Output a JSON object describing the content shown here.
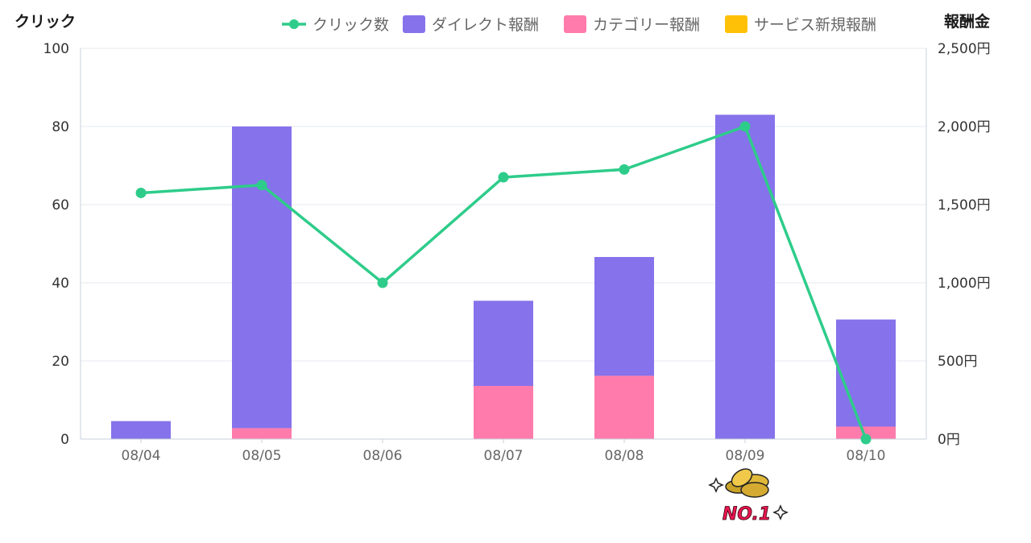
{
  "chart_data": {
    "type": "bar",
    "categories": [
      "08/04",
      "08/05",
      "08/06",
      "08/07",
      "08/08",
      "08/09",
      "08/10"
    ],
    "y_left_label": "クリック",
    "y_right_label": "報酬金",
    "y_left_range": [
      0,
      100
    ],
    "y_left_ticks": [
      "0",
      "20",
      "40",
      "60",
      "80",
      "100"
    ],
    "y_right_range": [
      0,
      2500
    ],
    "y_right_ticks": [
      "0円",
      "500円",
      "1,000円",
      "1,500円",
      "2,000円",
      "2,500円"
    ],
    "grid": true,
    "legend_position": "top-right",
    "stacked": true,
    "series": [
      {
        "name": "ダイレクト報酬",
        "kind": "bar",
        "axis": "right",
        "color": "#8672eb",
        "values": [
          115,
          1930,
          0,
          545,
          760,
          2075,
          685
        ]
      },
      {
        "name": "カテゴリー報酬",
        "kind": "bar",
        "axis": "right",
        "color": "#ff7bab",
        "values": [
          0,
          70,
          0,
          340,
          405,
          0,
          80
        ]
      },
      {
        "name": "サービス新規報酬",
        "kind": "bar",
        "axis": "right",
        "color": "#ffc107",
        "values": [
          0,
          0,
          0,
          0,
          0,
          0,
          0
        ]
      },
      {
        "name": "クリック数",
        "kind": "line",
        "axis": "left",
        "color": "#2ecc8a",
        "values": [
          63,
          65,
          40,
          67,
          69,
          80,
          0
        ]
      }
    ],
    "badge": {
      "category": "08/09",
      "text": "NO.1"
    }
  }
}
